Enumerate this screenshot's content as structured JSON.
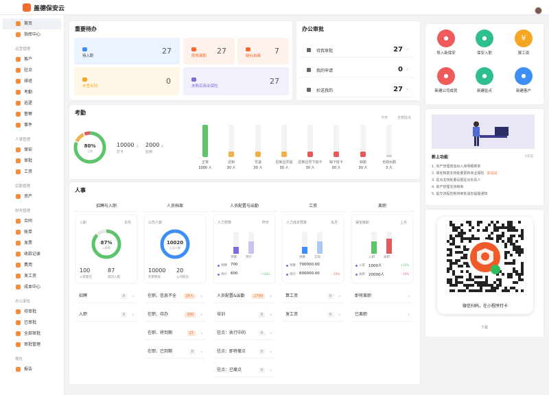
{
  "app": {
    "title": "盖德保安云"
  },
  "sidebar": {
    "top": [
      {
        "label": "首页",
        "active": true
      },
      {
        "label": "指挥中心"
      }
    ],
    "groups": [
      {
        "title": "运营管理",
        "items": [
          "客户",
          "驻点",
          "排班",
          "考勤",
          "巡逻",
          "督察",
          "事件"
        ]
      },
      {
        "title": "人事管理",
        "items": [
          "保安",
          "审批",
          "工资"
        ]
      },
      {
        "title": "后勤管理",
        "items": [
          "资产"
        ]
      },
      {
        "title": "财务管理",
        "items": [
          "合同",
          "账单",
          "发票",
          "收款记录",
          "费用",
          "发工资",
          "成本中心"
        ]
      },
      {
        "title": "办公审批",
        "items": [
          "待审批",
          "已审批",
          "全部审批",
          "审批管理"
        ]
      },
      {
        "title": "报告",
        "items": [
          "报告"
        ]
      }
    ]
  },
  "todo": {
    "title": "重要待办",
    "items": [
      {
        "label": "待入职",
        "value": "27"
      },
      {
        "label": "即将离职",
        "value": "27"
      },
      {
        "label": "疑似自离",
        "value": "7"
      },
      {
        "label": "未签合同",
        "value": "0"
      },
      {
        "label": "未购买商业保险",
        "value": "27"
      }
    ]
  },
  "approval": {
    "title": "办公审批",
    "rows": [
      {
        "label": "待我审批",
        "value": "27"
      },
      {
        "label": "我的申请",
        "value": "0"
      },
      {
        "label": "抄送我的",
        "value": "27"
      }
    ]
  },
  "quick": {
    "items": [
      {
        "label": "导入新保安",
        "color": "#ef5a5a",
        "icon": "user-plus-icon"
      },
      {
        "label": "保安入职",
        "color": "#2fbf8f",
        "icon": "user-check-icon"
      },
      {
        "label": "算工资",
        "color": "#f5a623",
        "icon": "yen-icon",
        "glyph": "¥"
      },
      {
        "label": "新建公司成员",
        "color": "#ef5a5a",
        "icon": "member-icon"
      },
      {
        "label": "新建驻点",
        "color": "#2fbf8f",
        "icon": "location-icon"
      },
      {
        "label": "新建客户",
        "color": "#3d8ef5",
        "icon": "client-icon"
      }
    ]
  },
  "attendance": {
    "title": "考勤",
    "filter1": "今天",
    "filter2": "全部驻点",
    "rate": "80%",
    "rate_label": "正常",
    "punch": "10000",
    "punch_label": "打卡",
    "duty": "2000",
    "duty_label": "应到",
    "unit": "人",
    "chart_data": {
      "type": "bar",
      "categories": [
        "正常",
        "迟到",
        "早退",
        "迟到且早退",
        "迟到且早下班卡",
        "缺下班卡",
        "缺勤",
        "无效出勤"
      ],
      "values": [
        1000,
        30,
        30,
        30,
        30,
        30,
        30,
        3
      ],
      "unit": "人",
      "colors": [
        "#5cc46a",
        "#f0b04a",
        "#f0b04a",
        "#f0b04a",
        "#e45a5a",
        "#e45a5a",
        "#e45a5a",
        "#cccccc"
      ]
    }
  },
  "hr": {
    "title": "人事",
    "cols": [
      {
        "head": "招聘与入职",
        "sub": "入职",
        "period": "本月",
        "ring": "87%",
        "ring_label": "入职率",
        "n1": "100",
        "l1": "入职意见",
        "n2": "87",
        "l2": "成功入职",
        "rows": [
          {
            "l": "招聘",
            "b": "0"
          },
          {
            "l": "入职",
            "b": "0"
          }
        ]
      },
      {
        "head": "人员档案",
        "sub": "公司人数",
        "ring": "10020",
        "ring_label": "公司人数",
        "n1": "10000",
        "l1": "在职保安",
        "n2": "20",
        "l2": "公司成员",
        "rows": [
          {
            "l": "在职、信息不全",
            "b": "20人"
          },
          {
            "l": "在职、待办",
            "b": "100"
          },
          {
            "l": "在职、将到期",
            "b": "27"
          },
          {
            "l": "在职、已到期",
            "b": "0"
          }
        ]
      },
      {
        "head": "人员配置与出勤",
        "sub": "人力预算",
        "period": "昨天",
        "a": "预算",
        "b": "预计",
        "v1l": "预算",
        "v1": "700",
        "v2l": "预计",
        "v2": "600",
        "d2": "+100人",
        "rows": [
          {
            "l": "人员配置&出勤",
            "b": "2700"
          },
          {
            "l": "培训",
            "b": "0"
          },
          {
            "l": "驻点：执行中的",
            "b": "0"
          },
          {
            "l": "驻点：即将撤点",
            "b": "0"
          },
          {
            "l": "驻点：已撤点",
            "b": "0"
          }
        ]
      },
      {
        "head": "工资",
        "sub": "人力成本预算",
        "period": "本月",
        "a": "预算",
        "b": "实际",
        "v1l": "预算",
        "v1": "700000.00",
        "v2l": "预计",
        "v2": "600000.00",
        "d2": "-10%",
        "rows": [
          {
            "l": "算工资",
            "b": "0"
          },
          {
            "l": "发工资",
            "b": "0"
          }
        ]
      },
      {
        "head": "离职",
        "sub": "保安离职",
        "period": "上月",
        "a": "入职",
        "b": "离职",
        "v1l": "入职",
        "v1": "1000人",
        "d1": "+10%",
        "v2l": "离职",
        "v2": "20000人",
        "d2": "-10%",
        "rows": [
          {
            "l": "即将离职",
            "b": ""
          },
          {
            "l": "已离职",
            "b": ""
          }
        ]
      }
    ]
  },
  "news": {
    "title": "新上功能",
    "more": "5天前",
    "items": [
      "资产管理增加出入库明细菜单",
      "保安档案支持批量更新商业保险",
      "驻点支持批量设置驻点负责人",
      "资产管理支持移库",
      "提交流程控制待审批消息提醒通知"
    ],
    "link": "去试试"
  },
  "qr": {
    "caption": "微信扫码，在小程序打卡",
    "download": "下载"
  },
  "units": {
    "person": "人"
  }
}
